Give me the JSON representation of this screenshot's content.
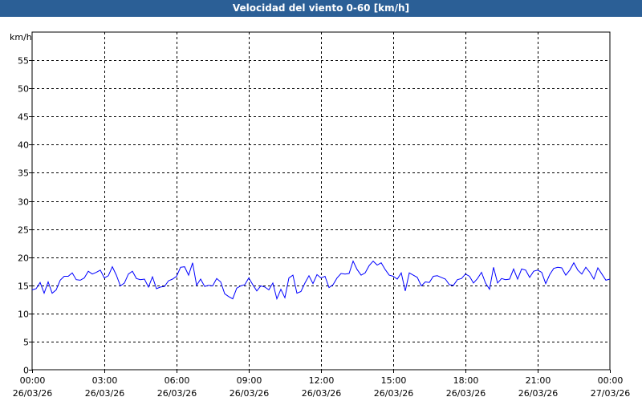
{
  "window": {
    "title": "Velocidad del viento 0-60 [km/h]"
  },
  "chart_data": {
    "type": "line",
    "title": "Velocidad del viento 0-60 [km/h]",
    "ylabel": "km/h",
    "ylim": [
      0,
      60
    ],
    "yticks": [
      0,
      5,
      10,
      15,
      20,
      25,
      30,
      35,
      40,
      45,
      50,
      55
    ],
    "xlim": [
      "26/03/26 00:00",
      "27/03/26 00:00"
    ],
    "xticks": [
      {
        "time": "00:00",
        "date": "26/03/26"
      },
      {
        "time": "03:00",
        "date": "26/03/26"
      },
      {
        "time": "06:00",
        "date": "26/03/26"
      },
      {
        "time": "09:00",
        "date": "26/03/26"
      },
      {
        "time": "12:00",
        "date": "26/03/26"
      },
      {
        "time": "15:00",
        "date": "26/03/26"
      },
      {
        "time": "18:00",
        "date": "26/03/26"
      },
      {
        "time": "21:00",
        "date": "26/03/26"
      },
      {
        "time": "00:00",
        "date": "27/03/26"
      }
    ],
    "grid": true,
    "line_color": "#0000ff",
    "sample_interval_minutes": 10,
    "series": [
      {
        "values": [
          14.2,
          14.4,
          15.5,
          13.6,
          15.6,
          13.6,
          14.2,
          15.9,
          16.6,
          16.6,
          17.2,
          16.0,
          15.9,
          16.3,
          17.5,
          17.0,
          17.3,
          17.7,
          16.3,
          16.7,
          18.3,
          16.8,
          14.9,
          15.4,
          17.0,
          17.5,
          16.2,
          16.0,
          16.1,
          14.7,
          16.5,
          14.4,
          14.7,
          14.8,
          15.8,
          16.1,
          16.6,
          18.2,
          18.3,
          16.8,
          19.0,
          15.0,
          16.1,
          14.8,
          15.0,
          14.9,
          16.2,
          15.6,
          13.5,
          13.0,
          12.6,
          14.5,
          14.9,
          15.1,
          16.3,
          15.1,
          14.0,
          14.9,
          14.7,
          14.2,
          15.4,
          12.6,
          14.3,
          12.8,
          16.3,
          16.8,
          13.6,
          13.9,
          15.4,
          16.7,
          15.3,
          16.9,
          16.3,
          16.6,
          14.6,
          15.1,
          16.3,
          17.1,
          17.0,
          17.1,
          19.3,
          17.8,
          16.8,
          17.2,
          18.5,
          19.3,
          18.6,
          19.0,
          17.8,
          16.8,
          16.6,
          16.1,
          17.2,
          14.0,
          17.2,
          16.8,
          16.4,
          14.9,
          15.6,
          15.5,
          16.6,
          16.7,
          16.4,
          16.1,
          15.1,
          15.0,
          16.0,
          16.2,
          17.0,
          16.6,
          15.4,
          16.2,
          17.3,
          15.4,
          14.3,
          18.2,
          15.4,
          16.2,
          16.0,
          16.1,
          17.9,
          16.1,
          17.9,
          17.7,
          16.4,
          17.5,
          17.7,
          17.3,
          15.3,
          16.9,
          18.0,
          18.2,
          18.1,
          16.8,
          17.7,
          19.0,
          17.7,
          17.0,
          18.2,
          17.3,
          16.1,
          18.1,
          17.0,
          15.9,
          16.1
        ]
      }
    ]
  }
}
